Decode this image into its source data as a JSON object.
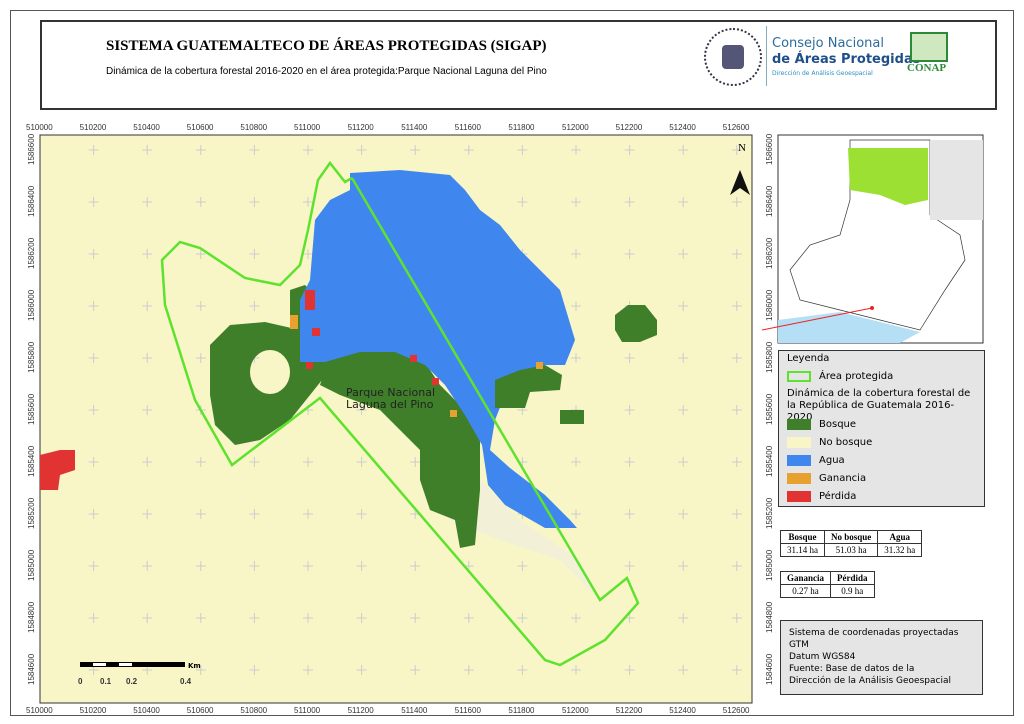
{
  "header": {
    "title": "SISTEMA GUATEMALTECO DE ÁREAS PROTEGIDAS  (SIGAP)",
    "subtitle": "Dinámica de la cobertura forestal 2016-2020 en el área protegida:Parque Nacional Laguna del Pino",
    "logos": {
      "seal_text": "GOBIERNO DE LA REPÚBLICA GUATEMALA",
      "consejo_line1": "Consejo Nacional",
      "consejo_line2": "de Áreas Protegidas",
      "consejo_line3": "Dirección de Análisis Geoespacial",
      "conap": "CONAP"
    }
  },
  "map": {
    "x_ticks": [
      "510000",
      "510200",
      "510400",
      "510600",
      "510800",
      "511000",
      "511200",
      "511400",
      "511600",
      "511800",
      "512000",
      "512200",
      "512400",
      "512600"
    ],
    "y_ticks": [
      "1586600",
      "1586400",
      "1586200",
      "1586000",
      "1585800",
      "1585600",
      "1585400",
      "1585200",
      "1585000",
      "1584800",
      "1584600"
    ],
    "area_label": "Parque Nacional Laguna del Pino",
    "north": "N",
    "scale": {
      "labels": [
        "0",
        "0.1",
        "0.2",
        "0.4"
      ],
      "unit": "Km"
    }
  },
  "legend": {
    "title": "Leyenda",
    "area": "Área protegida",
    "subtitle": "Dinámica de la cobertura forestal de la República de Guatemala 2016-2020",
    "items": [
      {
        "label": "Bosque",
        "color": "#3f7f2a"
      },
      {
        "label": "No bosque",
        "color": "#f8f6c6"
      },
      {
        "label": "Agua",
        "color": "#3f87ee"
      },
      {
        "label": "Ganancia",
        "color": "#e6a12e"
      },
      {
        "label": "Pérdida",
        "color": "#e23333"
      }
    ],
    "area_color": "#5ee22e"
  },
  "table1": {
    "headers": [
      "Bosque",
      "No bosque",
      "Agua"
    ],
    "values": [
      "31.14 ha",
      "51.03 ha",
      "31.32 ha"
    ]
  },
  "table2": {
    "headers": [
      "Ganancia",
      "Pérdida"
    ],
    "values": [
      "0.27 ha",
      "0.9 ha"
    ]
  },
  "info": [
    "Sistema de coordenadas proyectadas",
    "GTM",
    "Datum WGS84",
    "Fuente: Base de datos de la",
    "Dirección de la Análisis Geoespacial"
  ]
}
